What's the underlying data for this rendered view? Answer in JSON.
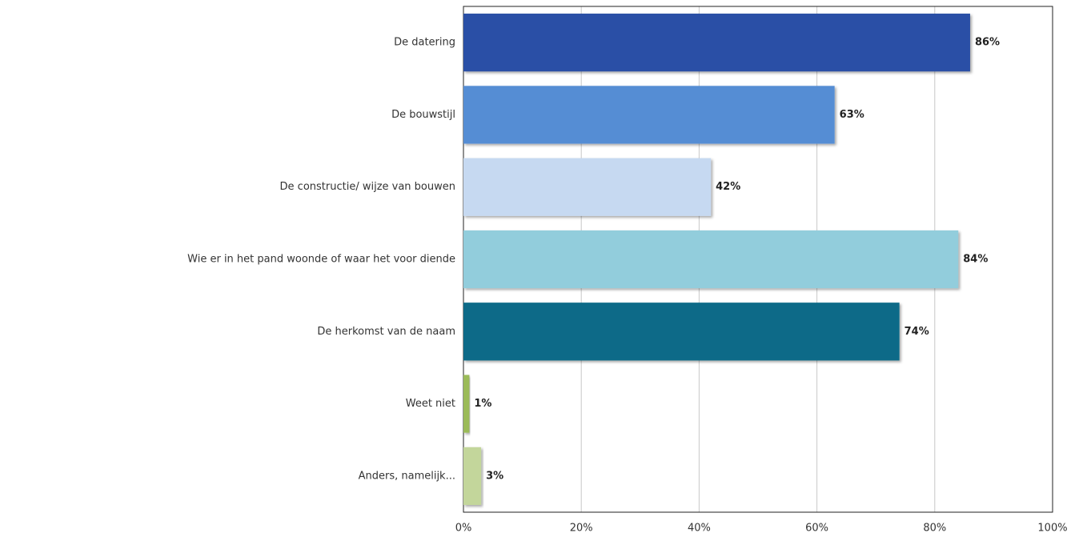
{
  "chart_data": {
    "type": "barh",
    "categories": [
      "De datering",
      "De bouwstijl",
      "De constructie/ wijze van bouwen",
      "Wie er in het pand woonde of waar het voor diende",
      "De herkomst van de naam",
      "Weet niet",
      "Anders, namelijk..."
    ],
    "values": [
      86,
      63,
      42,
      84,
      74,
      1,
      3
    ],
    "value_labels": [
      "86%",
      "63%",
      "42%",
      "84%",
      "74%",
      "1%",
      "3%"
    ],
    "colors": [
      "#2a4fa6",
      "#548dd4",
      "#c6d9f1",
      "#92cddc",
      "#076a88",
      "#9bbb59",
      "#c3d69b"
    ],
    "xlim": [
      0,
      100
    ],
    "xticks": [
      {
        "value": 0,
        "label": "0%"
      },
      {
        "value": 20,
        "label": "20%"
      },
      {
        "value": 40,
        "label": "40%"
      },
      {
        "value": 60,
        "label": "60%"
      },
      {
        "value": 80,
        "label": "80%"
      },
      {
        "value": 100,
        "label": "100%"
      }
    ],
    "grid": true
  }
}
